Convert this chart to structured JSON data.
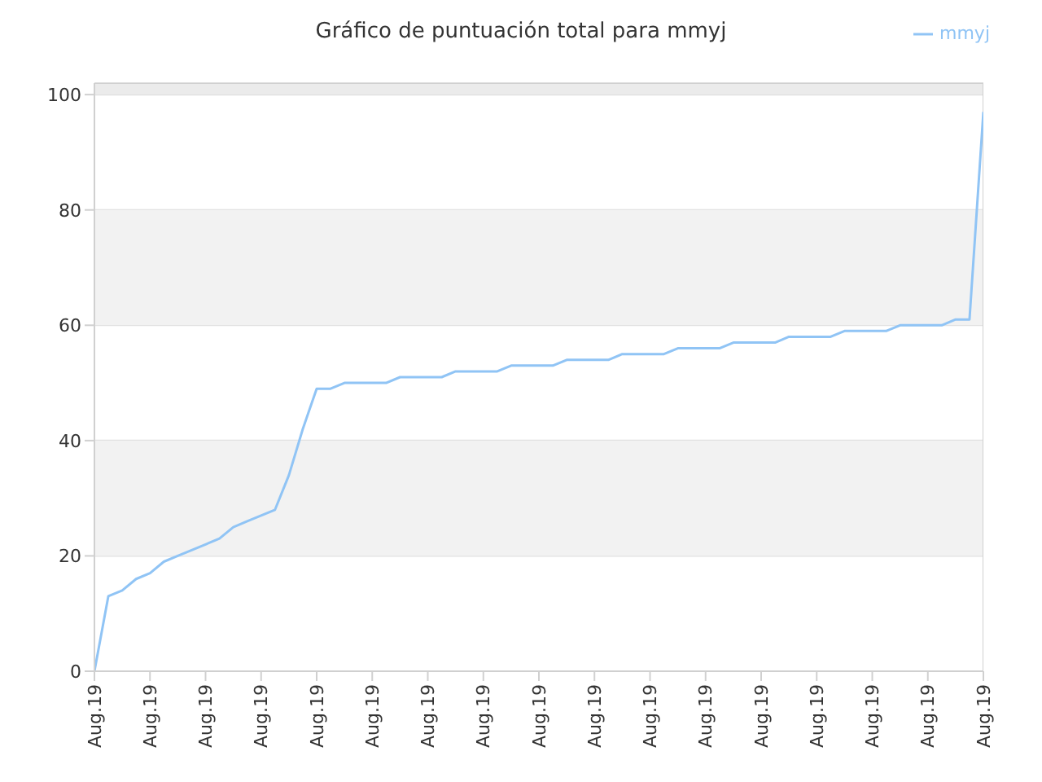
{
  "chart_data": {
    "type": "line",
    "title": "Gráfico de puntuación total para mmyj",
    "categories": [
      "Aug.19",
      null,
      null,
      null,
      "Aug.19",
      null,
      null,
      null,
      "Aug.19",
      null,
      null,
      null,
      "Aug.19",
      null,
      null,
      null,
      "Aug.19",
      null,
      null,
      null,
      "Aug.19",
      null,
      null,
      null,
      "Aug.19",
      null,
      null,
      null,
      "Aug.19",
      null,
      null,
      null,
      "Aug.19",
      null,
      null,
      null,
      "Aug.19",
      null,
      null,
      null,
      "Aug.19",
      null,
      null,
      null,
      "Aug.19",
      null,
      null,
      null,
      "Aug.19",
      null,
      null,
      null,
      "Aug.19",
      null,
      null,
      null,
      "Aug.19",
      null,
      null,
      null,
      "Aug.19",
      null,
      null,
      null,
      "Aug.19"
    ],
    "series": [
      {
        "name": "mmyj",
        "color": "#90c4f5",
        "values": [
          0,
          13,
          14,
          16,
          17,
          19,
          20,
          21,
          22,
          23,
          25,
          26,
          27,
          28,
          34,
          42,
          49,
          49,
          50,
          50,
          50,
          50,
          51,
          51,
          51,
          51,
          52,
          52,
          52,
          52,
          53,
          53,
          53,
          53,
          54,
          54,
          54,
          54,
          55,
          55,
          55,
          55,
          56,
          56,
          56,
          56,
          57,
          57,
          57,
          57,
          58,
          58,
          58,
          58,
          59,
          59,
          59,
          59,
          60,
          60,
          60,
          60,
          61,
          61,
          97
        ]
      }
    ],
    "ylim": [
      0,
      102
    ],
    "yticks": [
      0,
      20,
      40,
      60,
      80,
      100
    ],
    "bands": [
      {
        "axis": "y",
        "from": 20,
        "to": 40,
        "color": "#f2f2f2"
      },
      {
        "axis": "y",
        "from": 60,
        "to": 80,
        "color": "#f2f2f2"
      },
      {
        "axis": "y",
        "from": 100,
        "to": 102,
        "color": "#ebebeb"
      }
    ],
    "grid": "y",
    "legend": "top right",
    "marker": "none",
    "line_style": "solid"
  }
}
